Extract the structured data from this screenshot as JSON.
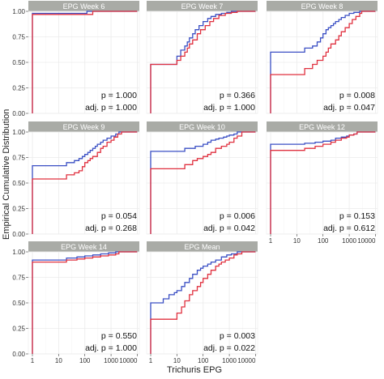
{
  "figure": {
    "y_axis_label": "Empirical Cumulative Distribution",
    "x_axis_label": "Trichuris EPG",
    "colors": {
      "series_a": "#3a4fc4",
      "series_b": "#e0303f",
      "strip_bg": "#a9aba6",
      "strip_text": "#ffffff",
      "panel_bg": "#ffffff",
      "grid": "#ebebeb",
      "axis_text": "#333333"
    }
  },
  "chart_data": [
    {
      "type": "line",
      "title": "EPG Week 6",
      "x_ticks": [
        "1",
        "10",
        "100",
        "1000",
        "10000"
      ],
      "y_ticks": [
        "0.00",
        "0.25",
        "0.50",
        "0.75",
        "1.00"
      ],
      "xlim": [
        0.7,
        12000
      ],
      "ylim": [
        0,
        1
      ],
      "x_scale": "log",
      "grid": true,
      "show_x_ticks": false,
      "show_y_ticks": true,
      "p_value": "p = 1.000",
      "adj_p_value": "adj. p = 1.000",
      "series": [
        {
          "color": "#3a4fc4",
          "x": [
            1,
            1,
            100,
            120,
            10000
          ],
          "y": [
            0,
            0.98,
            0.98,
            1.0,
            1.0
          ]
        },
        {
          "color": "#e0303f",
          "x": [
            1,
            1,
            150,
            200,
            10000
          ],
          "y": [
            0,
            0.97,
            0.97,
            1.0,
            1.0
          ]
        }
      ]
    },
    {
      "type": "line",
      "title": "EPG Week 7",
      "x_ticks": [
        "1",
        "10",
        "100",
        "1000",
        "10000"
      ],
      "y_ticks": [
        "0.00",
        "0.25",
        "0.50",
        "0.75",
        "1.00"
      ],
      "xlim": [
        0.7,
        12000
      ],
      "ylim": [
        0,
        1
      ],
      "x_scale": "log",
      "grid": true,
      "show_x_ticks": false,
      "show_y_ticks": false,
      "p_value": "p = 0.366",
      "adj_p_value": "adj. p = 1.000",
      "series": [
        {
          "color": "#3a4fc4",
          "x": [
            1,
            1,
            10,
            10,
            14,
            14,
            20,
            25,
            30,
            40,
            50,
            70,
            100,
            150,
            200,
            300,
            500,
            800,
            1200,
            10000
          ],
          "y": [
            0,
            0.48,
            0.48,
            0.56,
            0.56,
            0.62,
            0.66,
            0.7,
            0.74,
            0.78,
            0.82,
            0.86,
            0.9,
            0.93,
            0.95,
            0.97,
            0.98,
            0.99,
            1.0,
            1.0
          ]
        },
        {
          "color": "#e0303f",
          "x": [
            1,
            1,
            10,
            10,
            14,
            14,
            20,
            25,
            30,
            40,
            60,
            80,
            120,
            180,
            250,
            400,
            700,
            1200,
            2000,
            10000
          ],
          "y": [
            0,
            0.48,
            0.48,
            0.52,
            0.52,
            0.56,
            0.6,
            0.64,
            0.68,
            0.72,
            0.78,
            0.82,
            0.86,
            0.9,
            0.93,
            0.96,
            0.98,
            0.99,
            1.0,
            1.0
          ]
        }
      ]
    },
    {
      "type": "line",
      "title": "EPG Week 8",
      "x_ticks": [
        "1",
        "10",
        "100",
        "1000",
        "10000"
      ],
      "y_ticks": [
        "0.00",
        "0.25",
        "0.50",
        "0.75",
        "1.00"
      ],
      "xlim": [
        0.7,
        12000
      ],
      "ylim": [
        0,
        1
      ],
      "x_scale": "log",
      "grid": true,
      "show_x_ticks": false,
      "show_y_ticks": false,
      "p_value": "p = 0.008",
      "adj_p_value": "adj. p = 0.047",
      "series": [
        {
          "color": "#3a4fc4",
          "x": [
            1,
            1,
            20,
            20,
            40,
            60,
            80,
            100,
            130,
            160,
            200,
            250,
            300,
            400,
            500,
            700,
            1000,
            1500,
            2500,
            10000
          ],
          "y": [
            0,
            0.6,
            0.6,
            0.64,
            0.66,
            0.7,
            0.74,
            0.78,
            0.82,
            0.84,
            0.86,
            0.88,
            0.9,
            0.92,
            0.94,
            0.96,
            0.98,
            0.99,
            1.0,
            1.0
          ]
        },
        {
          "color": "#e0303f",
          "x": [
            1,
            1,
            20,
            20,
            40,
            60,
            100,
            130,
            160,
            200,
            300,
            400,
            500,
            700,
            1000,
            1300,
            1800,
            2500,
            3000,
            10000
          ],
          "y": [
            0,
            0.38,
            0.38,
            0.44,
            0.48,
            0.52,
            0.56,
            0.6,
            0.64,
            0.68,
            0.72,
            0.76,
            0.8,
            0.84,
            0.88,
            0.92,
            0.95,
            0.98,
            1.0,
            1.0
          ]
        }
      ]
    },
    {
      "type": "line",
      "title": "EPG Week 9",
      "x_ticks": [
        "1",
        "10",
        "100",
        "1000",
        "10000"
      ],
      "y_ticks": [
        "0.00",
        "0.25",
        "0.50",
        "0.75",
        "1.00"
      ],
      "xlim": [
        0.7,
        12000
      ],
      "ylim": [
        0,
        1
      ],
      "x_scale": "log",
      "grid": true,
      "show_x_ticks": false,
      "show_y_ticks": true,
      "p_value": "p = 0.054",
      "adj_p_value": "adj. p = 0.268",
      "series": [
        {
          "color": "#3a4fc4",
          "x": [
            1,
            1,
            20,
            20,
            40,
            60,
            80,
            100,
            130,
            160,
            200,
            250,
            300,
            400,
            500,
            700,
            1000,
            1500,
            2000,
            10000
          ],
          "y": [
            0,
            0.67,
            0.67,
            0.7,
            0.72,
            0.74,
            0.76,
            0.78,
            0.8,
            0.82,
            0.84,
            0.86,
            0.88,
            0.9,
            0.92,
            0.94,
            0.96,
            0.98,
            1.0,
            1.0
          ]
        },
        {
          "color": "#e0303f",
          "x": [
            1,
            1,
            20,
            20,
            40,
            60,
            80,
            100,
            130,
            160,
            200,
            300,
            400,
            500,
            700,
            1000,
            1300,
            1800,
            2500,
            10000
          ],
          "y": [
            0,
            0.54,
            0.54,
            0.58,
            0.6,
            0.62,
            0.66,
            0.7,
            0.72,
            0.74,
            0.76,
            0.8,
            0.84,
            0.86,
            0.9,
            0.92,
            0.95,
            0.98,
            1.0,
            1.0
          ]
        }
      ]
    },
    {
      "type": "line",
      "title": "EPG Week 10",
      "x_ticks": [
        "1",
        "10",
        "100",
        "1000",
        "10000"
      ],
      "y_ticks": [
        "0.00",
        "0.25",
        "0.50",
        "0.75",
        "1.00"
      ],
      "xlim": [
        0.7,
        12000
      ],
      "ylim": [
        0,
        1
      ],
      "x_scale": "log",
      "grid": true,
      "show_x_ticks": false,
      "show_y_ticks": false,
      "p_value": "p = 0.006",
      "adj_p_value": "adj. p = 0.042",
      "series": [
        {
          "color": "#3a4fc4",
          "x": [
            1,
            1,
            20,
            20,
            50,
            100,
            150,
            200,
            300,
            400,
            600,
            800,
            1000,
            1500,
            2000,
            10000
          ],
          "y": [
            0,
            0.81,
            0.81,
            0.84,
            0.86,
            0.88,
            0.9,
            0.92,
            0.93,
            0.94,
            0.95,
            0.96,
            0.97,
            0.98,
            1.0,
            1.0
          ]
        },
        {
          "color": "#e0303f",
          "x": [
            1,
            1,
            20,
            20,
            40,
            60,
            100,
            150,
            200,
            300,
            500,
            800,
            1000,
            1500,
            2000,
            3000,
            10000
          ],
          "y": [
            0,
            0.64,
            0.64,
            0.68,
            0.72,
            0.74,
            0.76,
            0.78,
            0.8,
            0.84,
            0.86,
            0.88,
            0.9,
            0.94,
            0.96,
            1.0,
            1.0
          ]
        }
      ]
    },
    {
      "type": "line",
      "title": "EPG Week 12",
      "x_ticks": [
        "1",
        "10",
        "100",
        "1000",
        "10000"
      ],
      "y_ticks": [
        "0.00",
        "0.25",
        "0.50",
        "0.75",
        "1.00"
      ],
      "xlim": [
        0.7,
        12000
      ],
      "ylim": [
        0,
        1
      ],
      "x_scale": "log",
      "grid": true,
      "show_x_ticks": true,
      "show_y_ticks": false,
      "p_value": "p = 0.153",
      "adj_p_value": "adj. p = 0.612",
      "series": [
        {
          "color": "#3a4fc4",
          "x": [
            1,
            1,
            20,
            20,
            50,
            100,
            200,
            300,
            500,
            800,
            1000,
            1500,
            2000,
            10000
          ],
          "y": [
            0,
            0.88,
            0.88,
            0.89,
            0.9,
            0.91,
            0.92,
            0.94,
            0.95,
            0.96,
            0.97,
            0.98,
            1.0,
            1.0
          ]
        },
        {
          "color": "#e0303f",
          "x": [
            1,
            1,
            20,
            20,
            50,
            100,
            200,
            300,
            500,
            800,
            1000,
            1500,
            2000,
            10000
          ],
          "y": [
            0,
            0.82,
            0.82,
            0.84,
            0.86,
            0.88,
            0.9,
            0.92,
            0.94,
            0.95,
            0.97,
            0.98,
            1.0,
            1.0
          ]
        }
      ]
    },
    {
      "type": "line",
      "title": "EPG Week 14",
      "x_ticks": [
        "1",
        "10",
        "100",
        "1000",
        "10000"
      ],
      "y_ticks": [
        "0.00",
        "0.25",
        "0.50",
        "0.75",
        "1.00"
      ],
      "xlim": [
        0.7,
        12000
      ],
      "ylim": [
        0,
        1
      ],
      "x_scale": "log",
      "grid": true,
      "show_x_ticks": true,
      "show_y_ticks": true,
      "p_value": "p = 0.550",
      "adj_p_value": "adj. p = 1.000",
      "series": [
        {
          "color": "#3a4fc4",
          "x": [
            1,
            1,
            20,
            20,
            50,
            100,
            200,
            400,
            800,
            1500,
            10000
          ],
          "y": [
            0,
            0.92,
            0.92,
            0.94,
            0.95,
            0.96,
            0.97,
            0.98,
            0.99,
            1.0,
            1.0
          ]
        },
        {
          "color": "#e0303f",
          "x": [
            1,
            1,
            20,
            20,
            50,
            100,
            200,
            400,
            800,
            1500,
            2000,
            10000
          ],
          "y": [
            0,
            0.9,
            0.9,
            0.92,
            0.93,
            0.94,
            0.95,
            0.96,
            0.97,
            0.98,
            1.0,
            1.0
          ]
        }
      ]
    },
    {
      "type": "line",
      "title": "EPG Mean",
      "x_ticks": [
        "1",
        "10",
        "100",
        "1000",
        "10000"
      ],
      "y_ticks": [
        "0.00",
        "0.25",
        "0.50",
        "0.75",
        "1.00"
      ],
      "xlim": [
        0.7,
        12000
      ],
      "ylim": [
        0,
        1
      ],
      "x_scale": "log",
      "grid": true,
      "show_x_ticks": true,
      "show_y_ticks": false,
      "p_value": "p = 0.003",
      "adj_p_value": "adj. p = 0.022",
      "series": [
        {
          "color": "#3a4fc4",
          "x": [
            1,
            1,
            3,
            3,
            5,
            8,
            10,
            15,
            20,
            30,
            40,
            60,
            80,
            100,
            150,
            200,
            300,
            500,
            800,
            1200,
            2000,
            10000
          ],
          "y": [
            0,
            0.5,
            0.5,
            0.54,
            0.58,
            0.6,
            0.62,
            0.66,
            0.7,
            0.74,
            0.78,
            0.82,
            0.84,
            0.86,
            0.88,
            0.9,
            0.92,
            0.95,
            0.97,
            0.98,
            1.0,
            1.0
          ]
        },
        {
          "color": "#e0303f",
          "x": [
            1,
            1,
            10,
            10,
            15,
            20,
            30,
            40,
            60,
            80,
            100,
            150,
            200,
            300,
            400,
            500,
            700,
            1000,
            1500,
            2000,
            3000,
            10000
          ],
          "y": [
            0,
            0.34,
            0.34,
            0.4,
            0.46,
            0.52,
            0.58,
            0.62,
            0.66,
            0.7,
            0.74,
            0.78,
            0.82,
            0.86,
            0.88,
            0.9,
            0.92,
            0.94,
            0.97,
            0.98,
            1.0,
            1.0
          ]
        }
      ]
    }
  ]
}
